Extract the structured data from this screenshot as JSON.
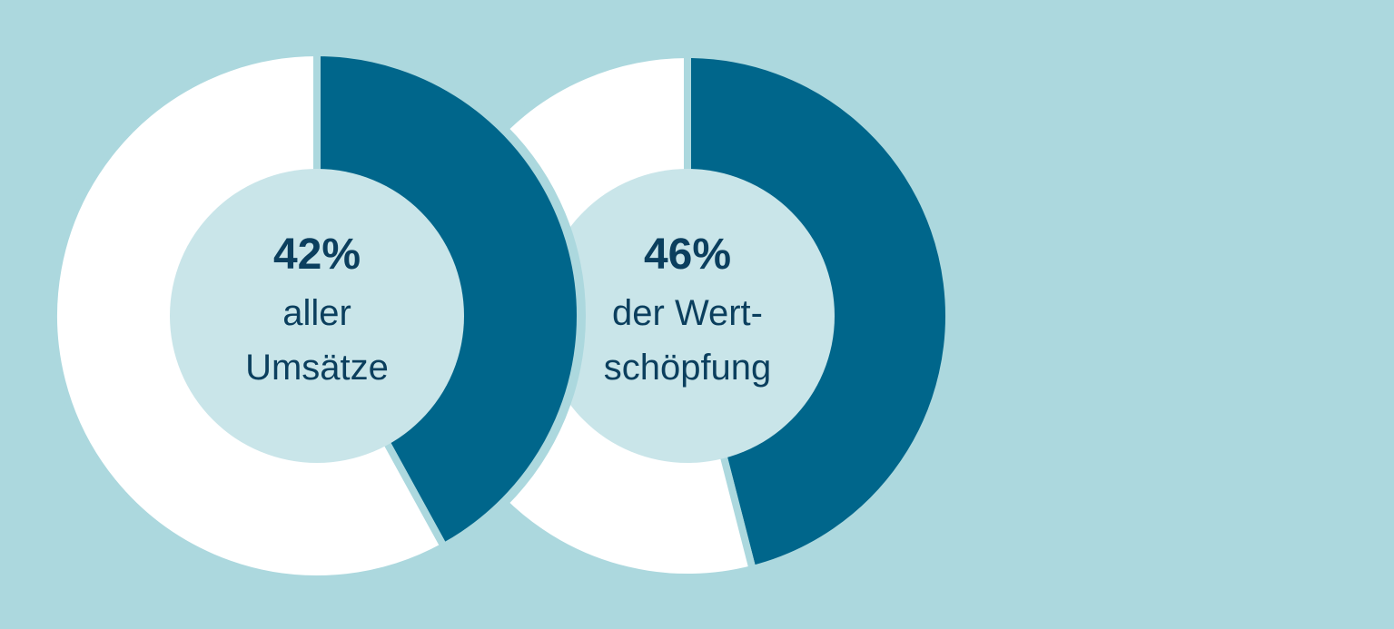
{
  "colors": {
    "background": "#acd8de",
    "share": "#00668b",
    "rest": "#ffffff",
    "inner": "#c9e5e9",
    "text": "#0b3f5e"
  },
  "chart_data": [
    {
      "type": "pie",
      "title": "",
      "slices": [
        {
          "label": "",
          "value": 42
        },
        {
          "label": "",
          "value": 58
        }
      ],
      "center_value": "42%",
      "center_lines": [
        "aller",
        "Umsätze"
      ]
    },
    {
      "type": "pie",
      "title": "",
      "slices": [
        {
          "label": "",
          "value": 46
        },
        {
          "label": "",
          "value": 54
        }
      ],
      "center_value": "46%",
      "center_lines": [
        "der Wert-",
        "schöpfung"
      ]
    }
  ]
}
